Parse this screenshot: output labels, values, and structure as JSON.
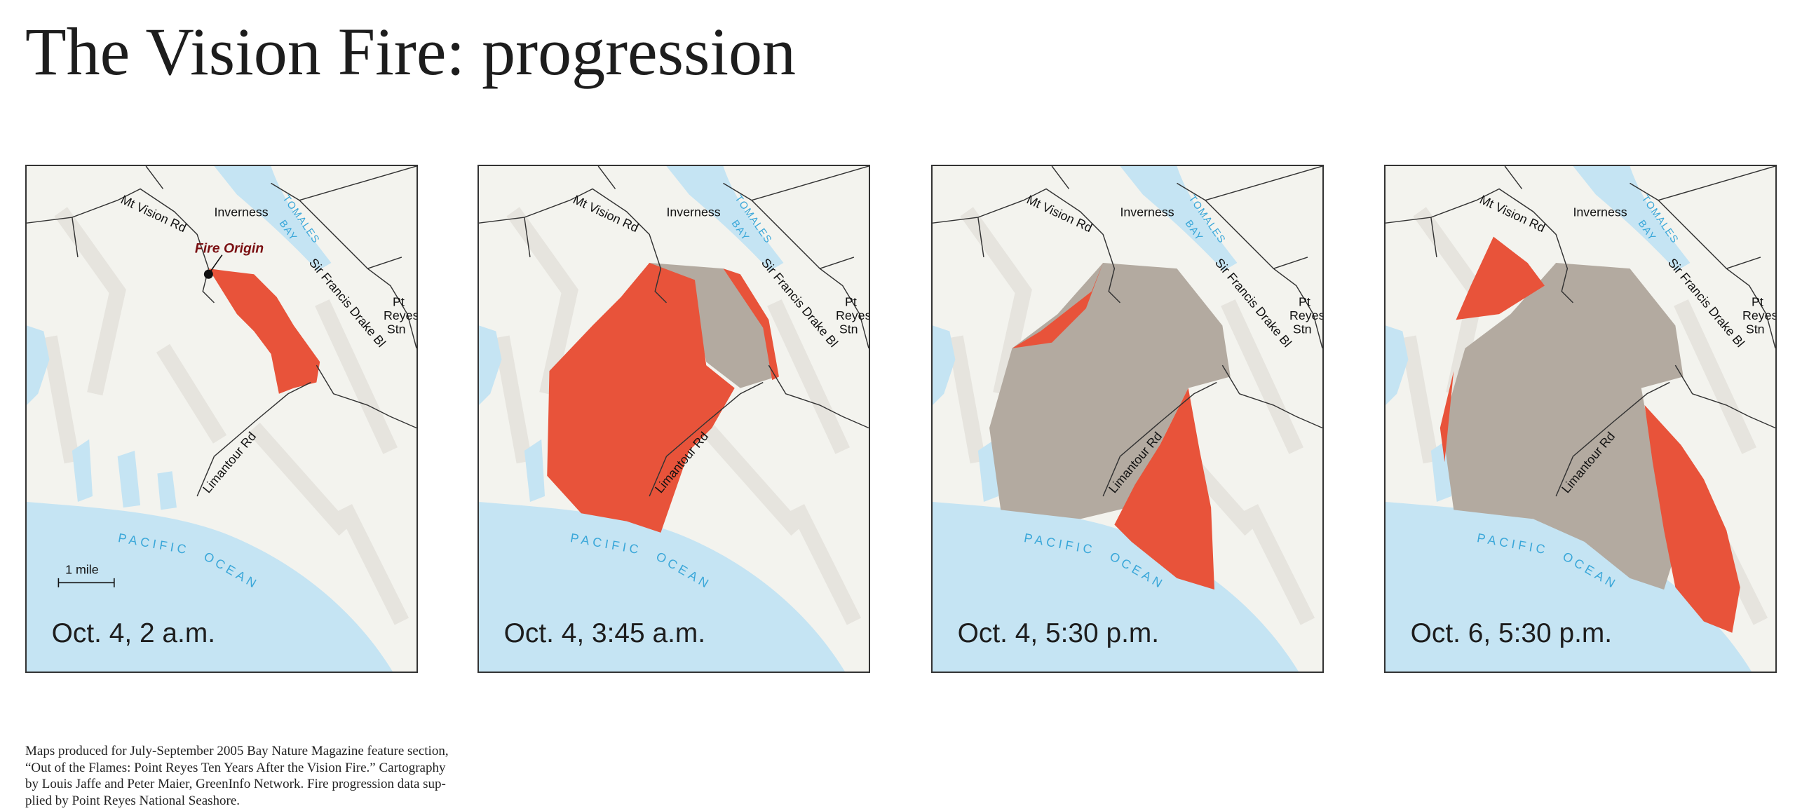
{
  "title": "The Vision Fire: progression",
  "place_labels": {
    "mt_vision_rd": "Mt Vision Rd",
    "inverness": "Inverness",
    "tomales": "TOMALES",
    "bay": "BAY",
    "sir_francis_drake": "Sir Francis Drake Bl",
    "pt": "Pt",
    "reyes": "Reyes",
    "stn": "Stn",
    "limantour_rd": "Limantour Rd",
    "pacific": "PACIFIC",
    "ocean": "OCEAN"
  },
  "maps": [
    {
      "date": "Oct. 4, 2 a.m.",
      "fire_origin": "Fire Origin",
      "scale": "1 mile"
    },
    {
      "date": "Oct. 4, 3:45 a.m."
    },
    {
      "date": "Oct. 4, 5:30 p.m."
    },
    {
      "date": "Oct. 6, 5:30 p.m."
    }
  ],
  "footnote": [
    "Maps produced for July-September 2005 Bay Nature Magazine feature section,",
    "“Out of the Flames: Point Reyes Ten Years After the Vision Fire.” Cartography",
    "by Louis Jaffe and Peter Maier, GreenInfo Network. Fire progression data sup-",
    "plied by Point Reyes National Seashore."
  ]
}
